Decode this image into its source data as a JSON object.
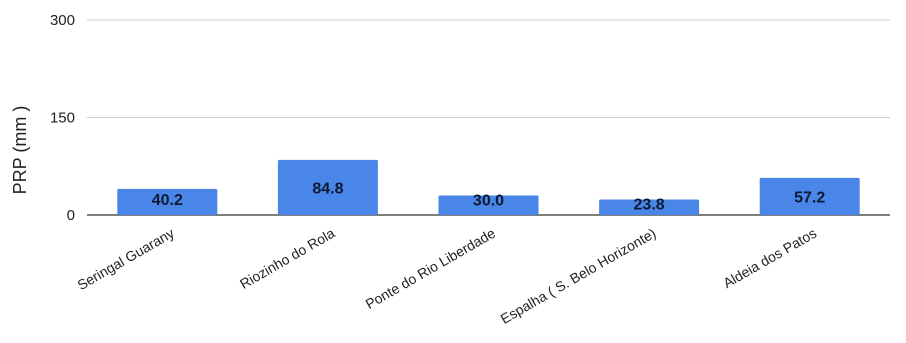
{
  "chart_data": {
    "type": "bar",
    "title": "",
    "xlabel": "",
    "ylabel": "PRP (mm )",
    "ylim": [
      0,
      300
    ],
    "yticks": [
      "0",
      "150",
      "300"
    ],
    "grid": true,
    "legend": "none",
    "bar_color": "#4a86e8",
    "categories": [
      "Seringal Guarany",
      "Riozinho do Rola",
      "Ponte do Rio Liberdade",
      "Espalha ( S. Belo Horizonte)",
      "Aldeia dos Patos"
    ],
    "values": [
      40.2,
      84.8,
      30.0,
      23.8,
      57.2
    ],
    "data_labels": [
      "40.2",
      "84.8",
      "30.0",
      "23.8",
      "57.2"
    ]
  }
}
